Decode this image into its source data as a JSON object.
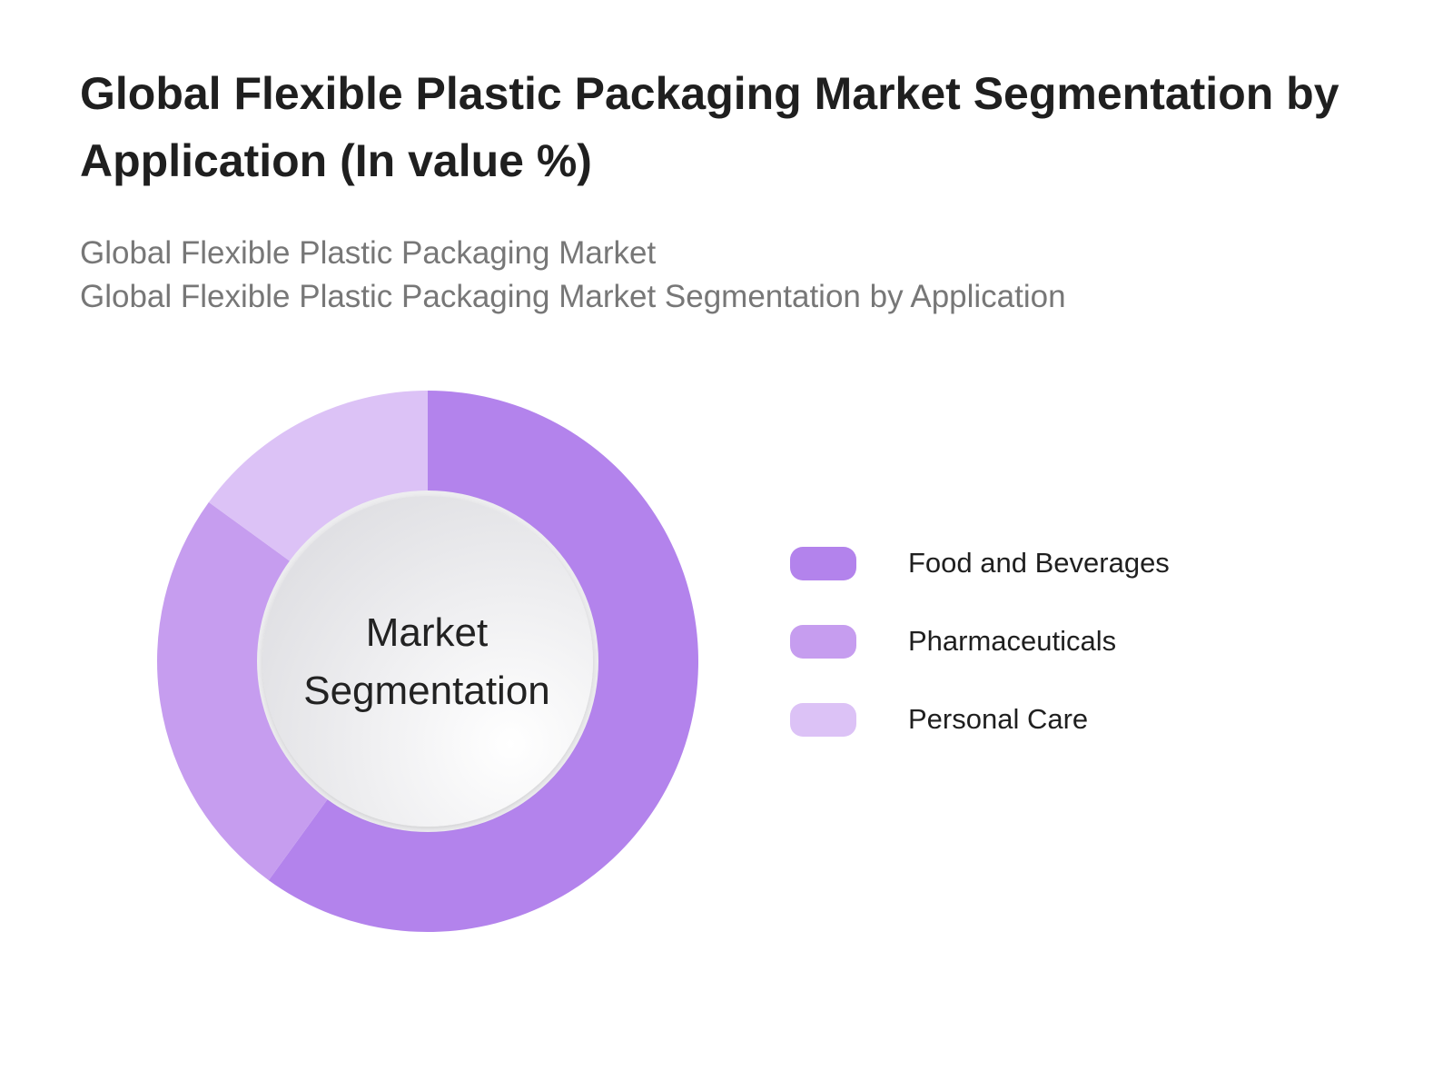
{
  "page": {
    "title": "Global Flexible Plastic Packaging Market Segmentation by Application (In value %)",
    "subtitle_lines": [
      "Global Flexible Plastic Packaging Market",
      "Global Flexible Plastic Packaging Market Segmentation by Application"
    ]
  },
  "chart_data": {
    "type": "pie",
    "style": "donut",
    "title": "Global Flexible Plastic Packaging Market Segmentation by Application (In value %)",
    "center_label_lines": [
      "Market",
      "Segmentation"
    ],
    "categories": [
      "Food and Beverages",
      "Pharmaceuticals",
      "Personal Care"
    ],
    "values": [
      60,
      25,
      15
    ],
    "colors": [
      "#b383ec",
      "#c69def",
      "#dcc2f6"
    ],
    "legend_position": "right"
  }
}
